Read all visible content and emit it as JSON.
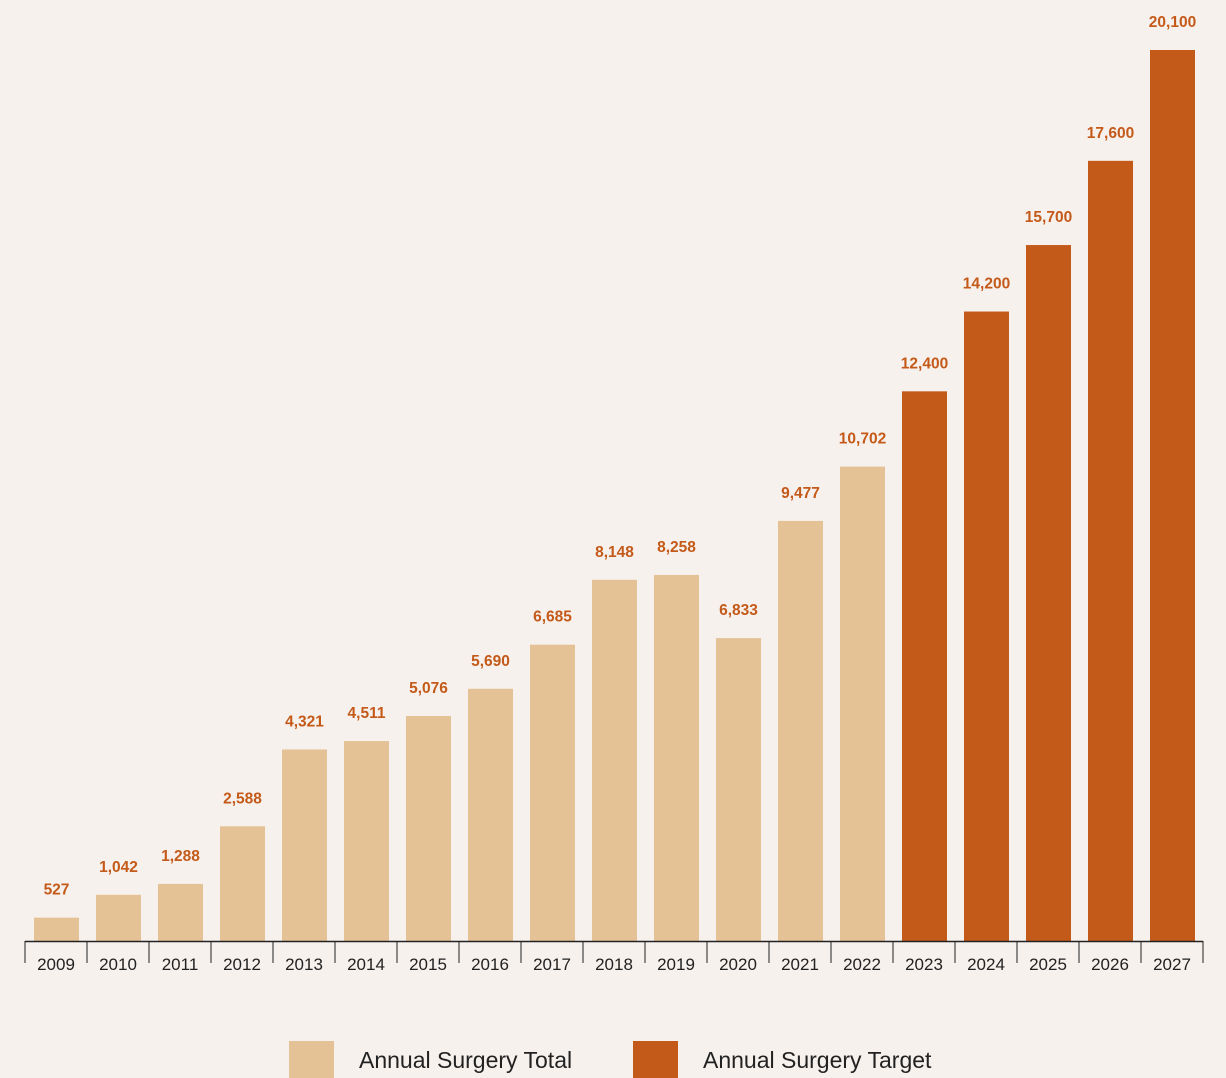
{
  "chart_data": {
    "type": "bar",
    "categories": [
      "2009",
      "2010",
      "2011",
      "2012",
      "2013",
      "2014",
      "2015",
      "2016",
      "2017",
      "2018",
      "2019",
      "2020",
      "2021",
      "2022",
      "2023",
      "2024",
      "2025",
      "2026",
      "2027"
    ],
    "values": [
      527,
      1042,
      1288,
      2588,
      4321,
      4511,
      5076,
      5690,
      6685,
      8148,
      8258,
      6833,
      9477,
      10702,
      12400,
      14200,
      15700,
      17600,
      20100
    ],
    "value_labels": [
      "527",
      "1,042",
      "1,288",
      "2,588",
      "4,321",
      "4,511",
      "5,076",
      "5,690",
      "6,685",
      "8,148",
      "8,258",
      "6,833",
      "9,477",
      "10,702",
      "12,400",
      "14,200",
      "15,700",
      "17,600",
      "20,100"
    ],
    "series_kind": [
      "total",
      "total",
      "total",
      "total",
      "total",
      "total",
      "total",
      "total",
      "total",
      "total",
      "total",
      "total",
      "total",
      "total",
      "target",
      "target",
      "target",
      "target",
      "target"
    ],
    "series": [
      {
        "key": "total",
        "name": "Annual Surgery Total",
        "color": "#E4C296"
      },
      {
        "key": "target",
        "name": "Annual Surgery Target",
        "color": "#C45A19"
      }
    ],
    "value_label_color": "#C45A19",
    "ylim": [
      0,
      20100
    ],
    "grid": false,
    "legend_position": "bottom-center"
  }
}
